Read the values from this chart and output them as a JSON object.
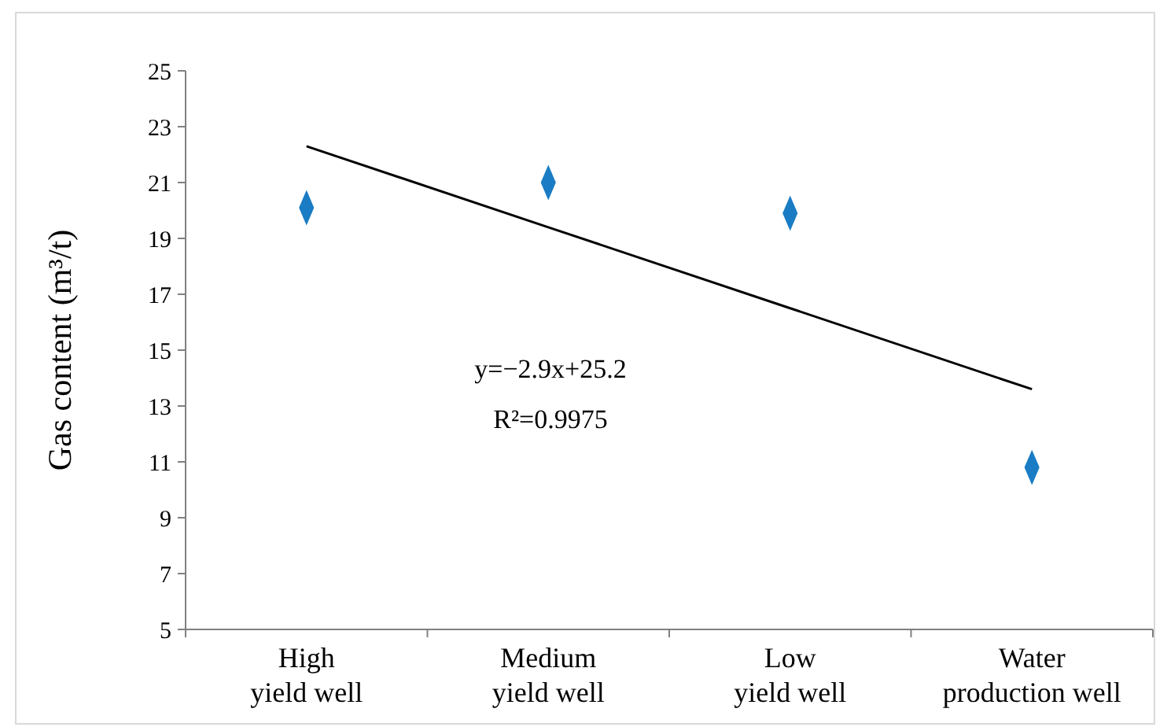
{
  "chart_data": {
    "type": "scatter",
    "ylabel": "Gas content (m³/t)",
    "categories": [
      "High yield well",
      "Medium yield well",
      "Low yield well",
      "Water production well"
    ],
    "series": [
      {
        "color": "#1a7cc4",
        "values": [
          20.1,
          21.0,
          19.9,
          10.8
        ],
        "marker": "diamond"
      },
      {
        "type": "line",
        "color": "#000000",
        "values": [
          22.3,
          19.4,
          16.5,
          13.6
        ],
        "marker": "none",
        "line_style": "solid"
      }
    ],
    "ylim": [
      5,
      25
    ],
    "yticks": [
      5,
      7,
      9,
      11,
      13,
      15,
      17,
      19,
      21,
      23,
      25
    ],
    "grid": false,
    "annotations": [
      "y=−2.9x+25.2",
      "R²=0.9975"
    ]
  }
}
